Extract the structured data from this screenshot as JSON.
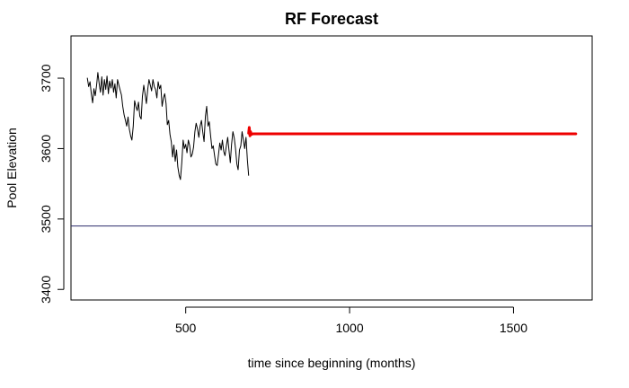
{
  "chart_data": {
    "type": "line",
    "title": "RF Forecast",
    "xlabel": "time since beginning (months)",
    "ylabel": "Pool Elevation",
    "xlim": [
      150,
      1740
    ],
    "ylim": [
      3385,
      3760
    ],
    "x_ticks": [
      500,
      1000,
      1500
    ],
    "y_ticks": [
      3400,
      3500,
      3600,
      3700
    ],
    "hline": {
      "y": 3490,
      "color": "#2b2b6b"
    },
    "series": [
      {
        "role": "historical",
        "color": "#000000",
        "x": [
          200,
          204,
          208,
          212,
          216,
          220,
          224,
          228,
          232,
          236,
          240,
          244,
          248,
          252,
          256,
          260,
          264,
          268,
          272,
          276,
          280,
          284,
          288,
          292,
          296,
          300,
          304,
          308,
          312,
          316,
          320,
          324,
          328,
          332,
          336,
          340,
          344,
          348,
          352,
          356,
          360,
          364,
          368,
          372,
          376,
          380,
          384,
          388,
          392,
          396,
          400,
          404,
          408,
          412,
          416,
          420,
          424,
          428,
          432,
          436,
          440,
          444,
          448,
          452,
          456,
          460,
          464,
          468,
          472,
          476,
          480,
          484,
          488,
          492,
          496,
          500,
          504,
          508,
          512,
          516,
          520,
          524,
          528,
          532,
          536,
          540,
          544,
          548,
          552,
          556,
          560,
          564,
          568,
          572,
          576,
          580,
          584,
          588,
          592,
          596,
          600,
          604,
          608,
          612,
          616,
          620,
          624,
          628,
          632,
          636,
          640,
          644,
          648,
          652,
          656,
          660,
          664,
          668,
          672,
          676,
          680,
          684,
          688,
          692
        ],
        "y": [
          3700,
          3688,
          3695,
          3678,
          3665,
          3685,
          3675,
          3690,
          3708,
          3692,
          3680,
          3702,
          3676,
          3698,
          3684,
          3703,
          3678,
          3696,
          3686,
          3698,
          3680,
          3692,
          3672,
          3698,
          3690,
          3683,
          3676,
          3660,
          3648,
          3640,
          3632,
          3645,
          3628,
          3618,
          3612,
          3632,
          3668,
          3660,
          3654,
          3666,
          3646,
          3642,
          3674,
          3690,
          3678,
          3664,
          3684,
          3698,
          3690,
          3682,
          3698,
          3688,
          3684,
          3672,
          3695,
          3685,
          3690,
          3660,
          3672,
          3678,
          3664,
          3634,
          3640,
          3620,
          3610,
          3588,
          3605,
          3582,
          3598,
          3574,
          3562,
          3556,
          3580,
          3612,
          3600,
          3606,
          3594,
          3612,
          3604,
          3588,
          3592,
          3602,
          3624,
          3636,
          3628,
          3616,
          3632,
          3640,
          3624,
          3610,
          3646,
          3660,
          3632,
          3638,
          3618,
          3600,
          3604,
          3590,
          3578,
          3576,
          3592,
          3608,
          3598,
          3612,
          3596,
          3590,
          3604,
          3616,
          3598,
          3580,
          3606,
          3624,
          3615,
          3600,
          3578,
          3570,
          3598,
          3604,
          3624,
          3612,
          3600,
          3616,
          3584,
          3562
        ]
      },
      {
        "role": "forecast",
        "color": "#ee0000",
        "x": [
          692,
          694,
          696,
          698,
          700,
          705,
          800,
          900,
          1000,
          1100,
          1200,
          1300,
          1400,
          1500,
          1600,
          1690
        ],
        "y": [
          3622,
          3630,
          3618,
          3624,
          3620,
          3621,
          3621,
          3621,
          3621,
          3621,
          3621,
          3621,
          3621,
          3621,
          3621,
          3621
        ]
      }
    ],
    "grid": false,
    "legend": "none"
  }
}
